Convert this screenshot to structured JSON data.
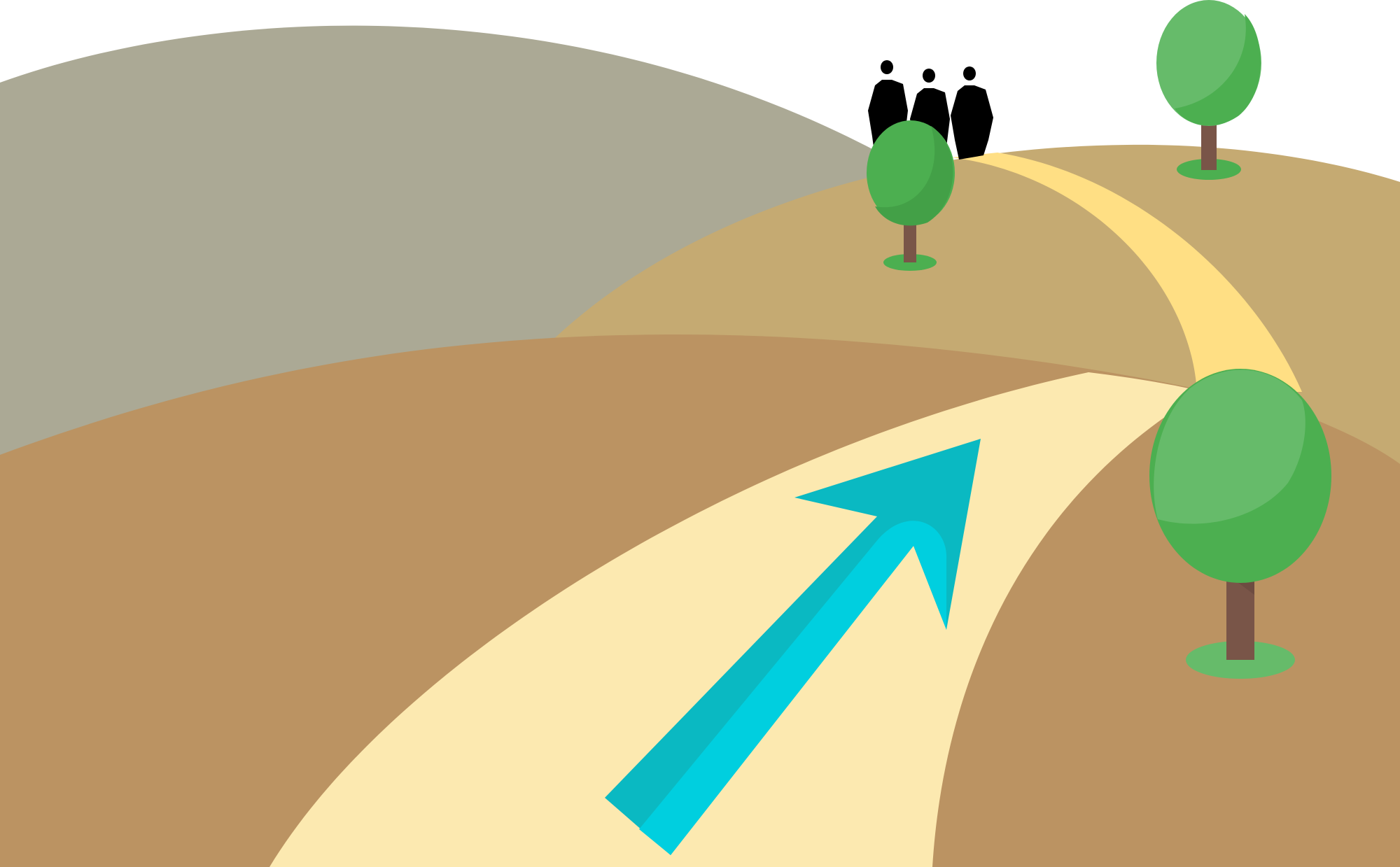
{
  "scene": {
    "description_label": "",
    "colors": {
      "sky": "#ffffff",
      "far_hill": "#aba995",
      "middle_hill": "#c5aa72",
      "near_hill": "#bb9362",
      "path_near": "#fce9b0",
      "path_far": "#ffdf84",
      "arrow_light": "#00cfdf",
      "arrow_dark": "#0ab9c2",
      "tree_light": "#66bb6a",
      "tree_mid": "#4caf50",
      "tree_dark": "#43a047",
      "trunk": "#795548",
      "silhouette": "#000000"
    },
    "icons": {
      "arrow": "up-right-arrow-icon",
      "people": "business-people-silhouette-icon",
      "tree": "tree-icon"
    },
    "people_count": 3,
    "tree_count": 3
  }
}
